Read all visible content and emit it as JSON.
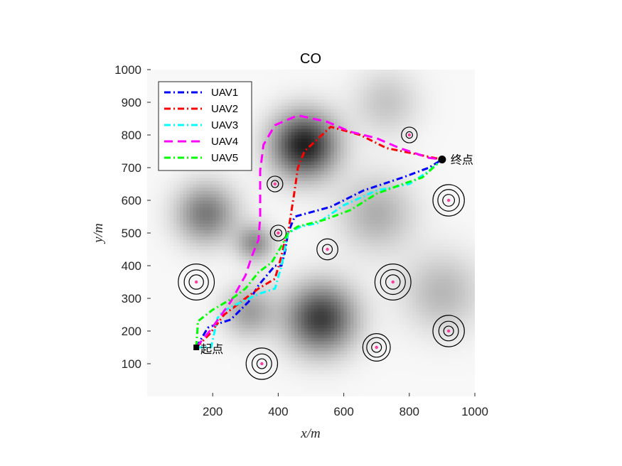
{
  "chart_data": {
    "type": "line",
    "title": "CO",
    "xlabel": "x/m",
    "ylabel": "y/m",
    "xlim": [
      0,
      1000
    ],
    "ylim": [
      0,
      1000
    ],
    "xticks": [
      200,
      400,
      600,
      800,
      1000
    ],
    "yticks": [
      100,
      200,
      300,
      400,
      500,
      600,
      700,
      800,
      900,
      1000
    ],
    "grid": false,
    "legend_position": "top-left",
    "start": {
      "label": "起点",
      "x": 150,
      "y": 150
    },
    "goal": {
      "label": "终点",
      "x": 900,
      "y": 725
    },
    "threats": [
      {
        "x": 150,
        "y": 350,
        "rings": [
          22,
          37,
          55
        ]
      },
      {
        "x": 350,
        "y": 100,
        "rings": [
          15,
          30,
          48
        ]
      },
      {
        "x": 390,
        "y": 650,
        "rings": [
          11,
          24
        ]
      },
      {
        "x": 400,
        "y": 500,
        "rings": [
          11,
          24
        ]
      },
      {
        "x": 550,
        "y": 450,
        "rings": [
          15,
          32
        ]
      },
      {
        "x": 700,
        "y": 150,
        "rings": [
          15,
          30,
          42
        ]
      },
      {
        "x": 750,
        "y": 350,
        "rings": [
          22,
          38,
          55
        ]
      },
      {
        "x": 800,
        "y": 800,
        "rings": [
          10,
          24
        ]
      },
      {
        "x": 920,
        "y": 600,
        "rings": [
          18,
          33,
          48
        ]
      },
      {
        "x": 920,
        "y": 200,
        "rings": [
          15,
          30,
          48
        ]
      }
    ],
    "terrain_peaks": [
      {
        "x": 480,
        "y": 770,
        "amp": 0.95,
        "sigma": 70
      },
      {
        "x": 530,
        "y": 240,
        "amp": 0.82,
        "sigma": 75
      },
      {
        "x": 180,
        "y": 560,
        "amp": 0.55,
        "sigma": 65
      },
      {
        "x": 310,
        "y": 260,
        "amp": 0.38,
        "sigma": 55
      },
      {
        "x": 700,
        "y": 560,
        "amp": 0.32,
        "sigma": 80
      },
      {
        "x": 900,
        "y": 320,
        "amp": 0.28,
        "sigma": 85
      },
      {
        "x": 330,
        "y": 470,
        "amp": 0.45,
        "sigma": 40
      },
      {
        "x": 730,
        "y": 900,
        "amp": 0.22,
        "sigma": 70
      }
    ],
    "series": [
      {
        "name": "UAV1",
        "color": "#0000ff",
        "dash": "dashdot",
        "points": [
          [
            150,
            150
          ],
          [
            185,
            210
          ],
          [
            210,
            220
          ],
          [
            255,
            235
          ],
          [
            310,
            290
          ],
          [
            340,
            340
          ],
          [
            390,
            400
          ],
          [
            410,
            400
          ],
          [
            420,
            440
          ],
          [
            430,
            500
          ],
          [
            450,
            550
          ],
          [
            560,
            580
          ],
          [
            660,
            630
          ],
          [
            780,
            670
          ],
          [
            860,
            700
          ],
          [
            900,
            725
          ]
        ]
      },
      {
        "name": "UAV2",
        "color": "#ff0000",
        "dash": "dashdot",
        "points": [
          [
            150,
            150
          ],
          [
            190,
            190
          ],
          [
            235,
            250
          ],
          [
            300,
            300
          ],
          [
            340,
            330
          ],
          [
            390,
            360
          ],
          [
            410,
            430
          ],
          [
            420,
            475
          ],
          [
            430,
            500
          ],
          [
            450,
            630
          ],
          [
            460,
            700
          ],
          [
            480,
            750
          ],
          [
            560,
            825
          ],
          [
            650,
            800
          ],
          [
            730,
            760
          ],
          [
            900,
            725
          ]
        ]
      },
      {
        "name": "UAV3",
        "color": "#00ffff",
        "dash": "dashdot",
        "points": [
          [
            150,
            150
          ],
          [
            195,
            150
          ],
          [
            215,
            240
          ],
          [
            230,
            260
          ],
          [
            300,
            295
          ],
          [
            345,
            315
          ],
          [
            390,
            330
          ],
          [
            410,
            400
          ],
          [
            420,
            450
          ],
          [
            430,
            500
          ],
          [
            470,
            520
          ],
          [
            520,
            530
          ],
          [
            600,
            585
          ],
          [
            700,
            630
          ],
          [
            800,
            650
          ],
          [
            860,
            690
          ],
          [
            900,
            725
          ]
        ]
      },
      {
        "name": "UAV4",
        "color": "#ff00ff",
        "dash": "dashed",
        "points": [
          [
            150,
            150
          ],
          [
            195,
            205
          ],
          [
            255,
            290
          ],
          [
            300,
            370
          ],
          [
            320,
            430
          ],
          [
            340,
            480
          ],
          [
            345,
            550
          ],
          [
            345,
            690
          ],
          [
            355,
            770
          ],
          [
            390,
            830
          ],
          [
            460,
            860
          ],
          [
            550,
            840
          ],
          [
            620,
            810
          ],
          [
            700,
            790
          ],
          [
            770,
            760
          ],
          [
            860,
            730
          ],
          [
            900,
            725
          ]
        ]
      },
      {
        "name": "UAV5",
        "color": "#00ff00",
        "dash": "dashdot",
        "points": [
          [
            150,
            150
          ],
          [
            155,
            230
          ],
          [
            200,
            265
          ],
          [
            260,
            300
          ],
          [
            300,
            330
          ],
          [
            340,
            380
          ],
          [
            380,
            410
          ],
          [
            410,
            460
          ],
          [
            430,
            500
          ],
          [
            460,
            520
          ],
          [
            540,
            540
          ],
          [
            620,
            570
          ],
          [
            700,
            620
          ],
          [
            780,
            650
          ],
          [
            840,
            670
          ],
          [
            900,
            725
          ]
        ]
      }
    ]
  }
}
